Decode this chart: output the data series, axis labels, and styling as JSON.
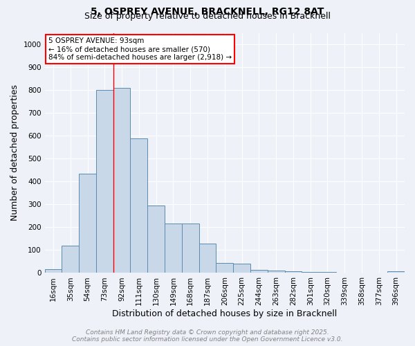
{
  "title_line1": "5, OSPREY AVENUE, BRACKNELL, RG12 8AT",
  "title_line2": "Size of property relative to detached houses in Bracknell",
  "xlabel": "Distribution of detached houses by size in Bracknell",
  "ylabel": "Number of detached properties",
  "bin_labels": [
    "16sqm",
    "35sqm",
    "54sqm",
    "73sqm",
    "92sqm",
    "111sqm",
    "130sqm",
    "149sqm",
    "168sqm",
    "187sqm",
    "206sqm",
    "225sqm",
    "244sqm",
    "263sqm",
    "282sqm",
    "301sqm",
    "320sqm",
    "339sqm",
    "358sqm",
    "377sqm",
    "396sqm"
  ],
  "bar_values": [
    17,
    120,
    435,
    800,
    810,
    590,
    295,
    215,
    215,
    130,
    45,
    40,
    12,
    9,
    6,
    4,
    4,
    1,
    1,
    1,
    6
  ],
  "bar_color": "#c8d8e8",
  "bar_edge_color": "#5a8ab0",
  "property_line_x": 4,
  "annotation_text": "5 OSPREY AVENUE: 93sqm\n← 16% of detached houses are smaller (570)\n84% of semi-detached houses are larger (2,918) →",
  "ylim": [
    0,
    1050
  ],
  "yticks": [
    0,
    100,
    200,
    300,
    400,
    500,
    600,
    700,
    800,
    900,
    1000
  ],
  "background_color": "#eef2f8",
  "grid_color": "#ffffff",
  "footer_line1": "Contains HM Land Registry data © Crown copyright and database right 2025.",
  "footer_line2": "Contains public sector information licensed under the Open Government Licence v3.0.",
  "title_fontsize": 10,
  "subtitle_fontsize": 9,
  "axis_label_fontsize": 9,
  "tick_fontsize": 7.5,
  "annotation_fontsize": 7.5,
  "footer_fontsize": 6.5
}
